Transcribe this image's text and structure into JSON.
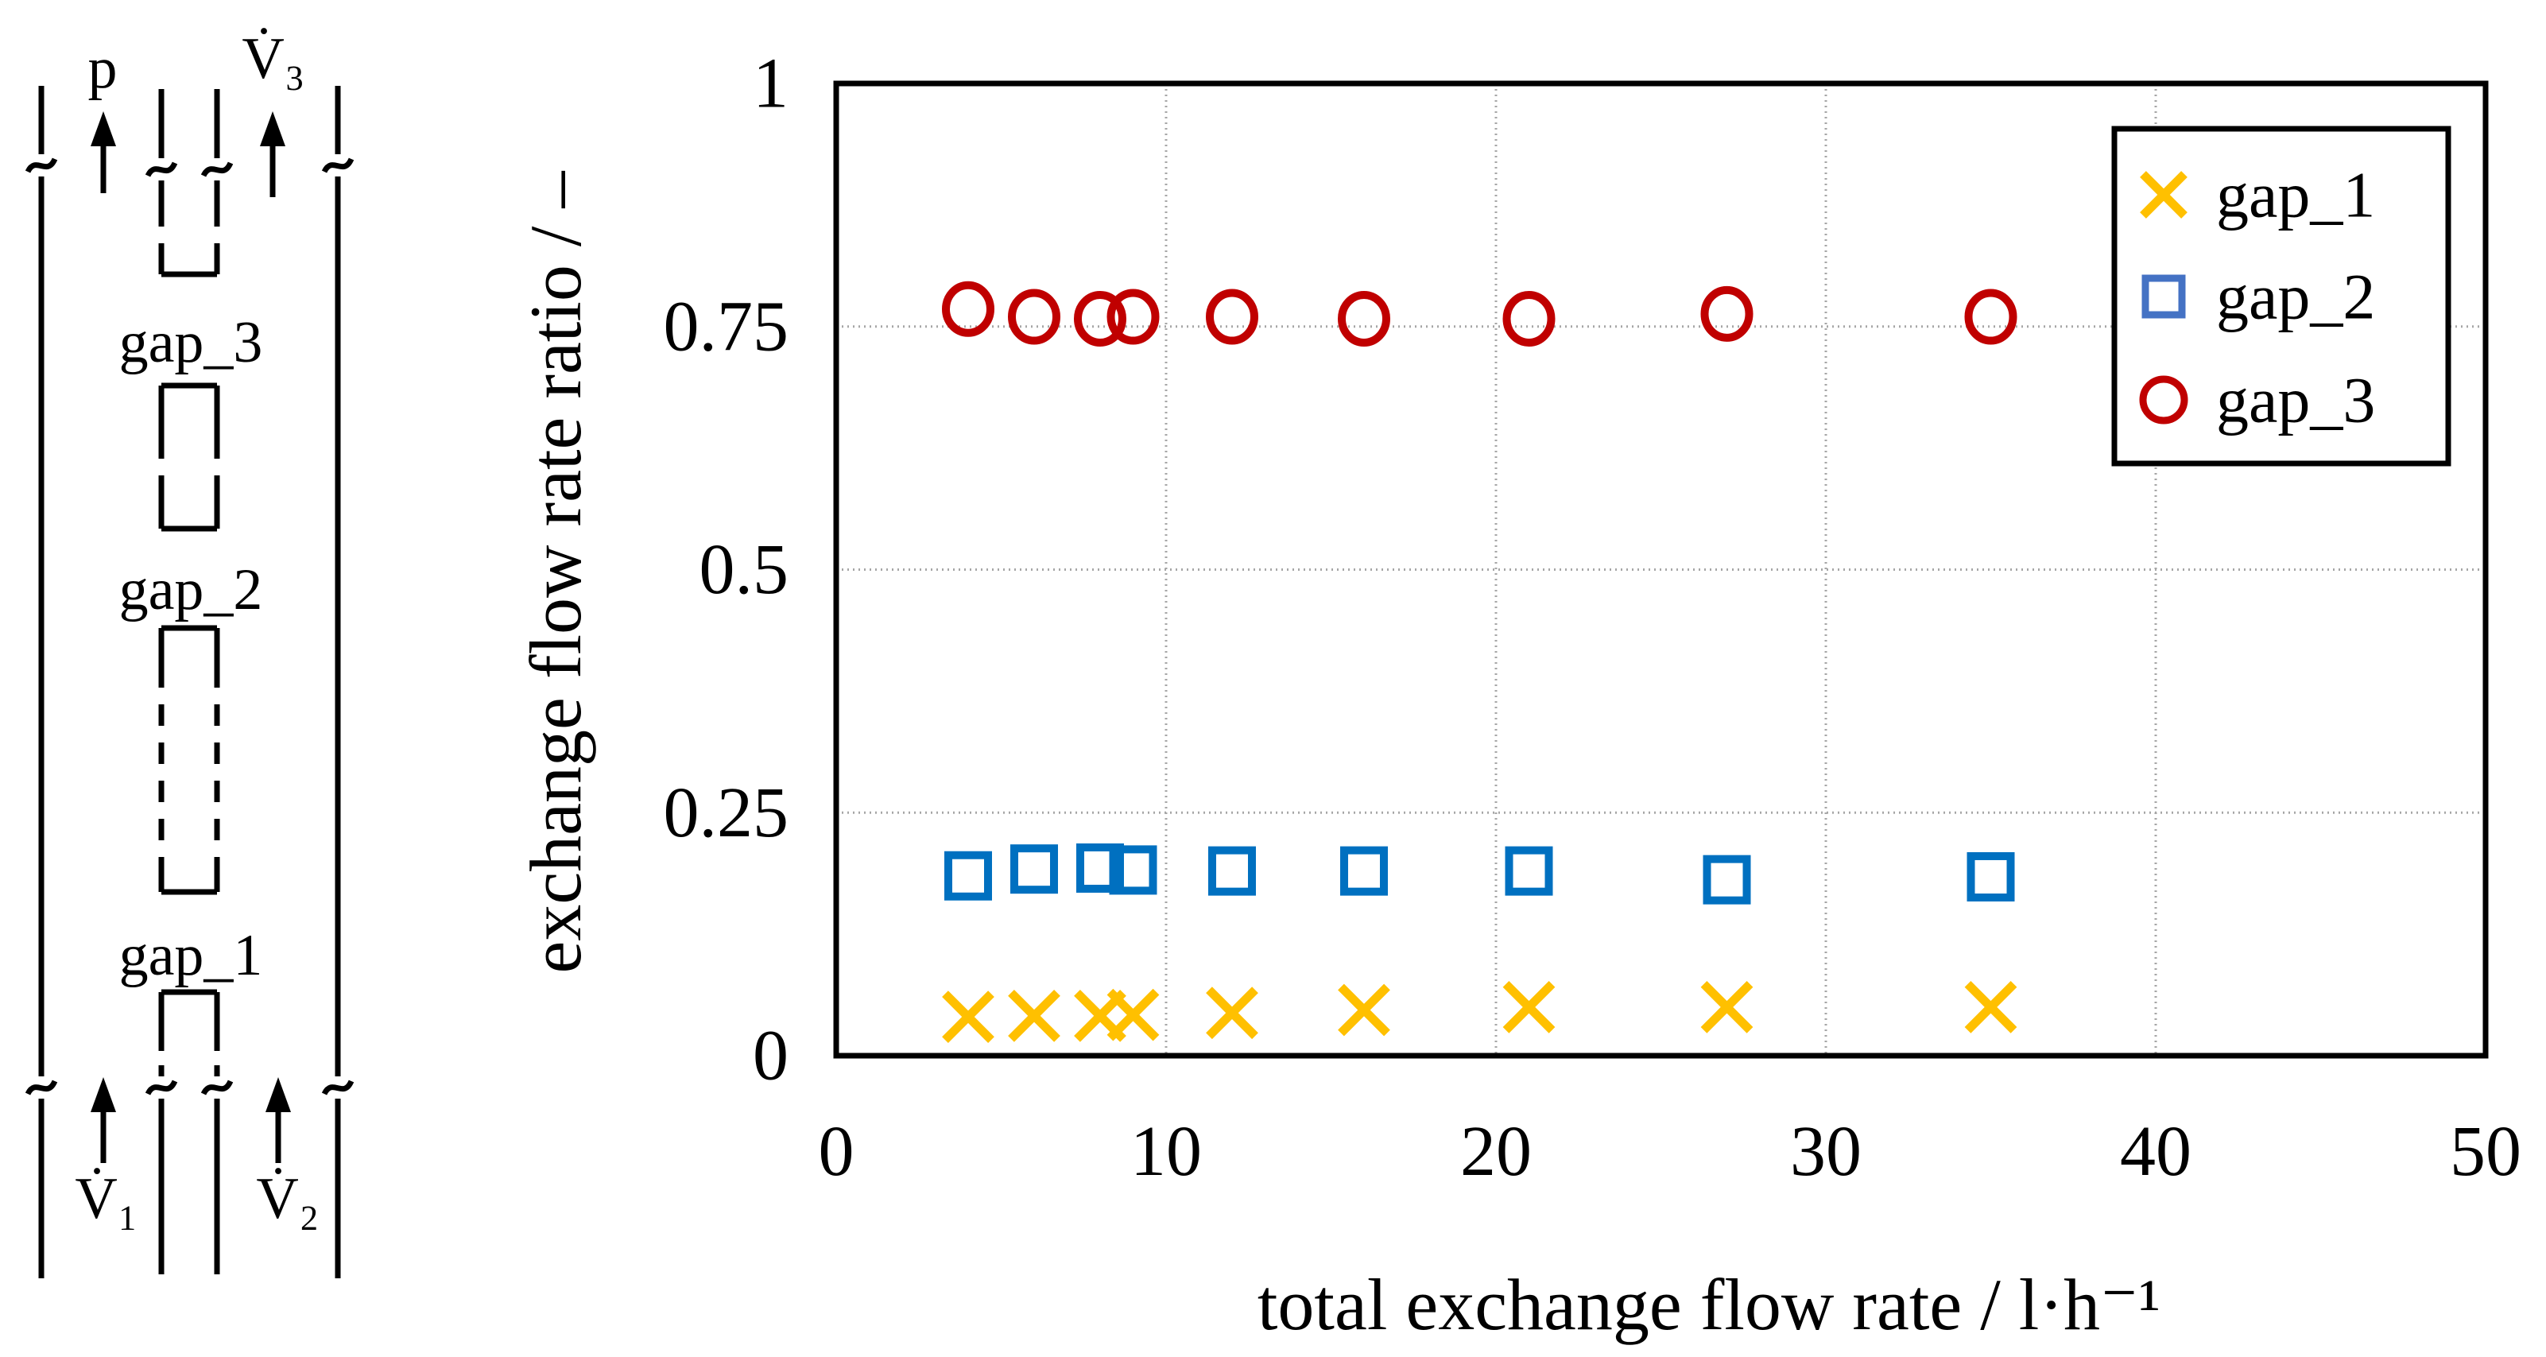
{
  "diagram": {
    "labels": {
      "p": "p",
      "v3": "V̇₃",
      "v1": "V̇₁",
      "v2": "V̇₂",
      "gap_3": "gap_3",
      "gap_2": "gap_2",
      "gap_1": "gap_1"
    }
  },
  "chart_data": {
    "type": "scatter",
    "title": "",
    "xlabel": "total exchange flow rate / l·h⁻¹",
    "ylabel": "exchange flow rate ratio / –",
    "xlim": [
      0,
      50
    ],
    "ylim": [
      0,
      1
    ],
    "x_ticks": [
      0,
      10,
      20,
      30,
      40,
      50
    ],
    "y_ticks": [
      "0",
      "0.25",
      "0.5",
      "0.75",
      "1"
    ],
    "grid": true,
    "legend_position": "top-right",
    "x": [
      4,
      6,
      8,
      9,
      12,
      16,
      21,
      27,
      35
    ],
    "series": [
      {
        "name": "gap_1",
        "marker": "x",
        "color": "#FFC000",
        "values": [
          0.04,
          0.041,
          0.041,
          0.042,
          0.044,
          0.047,
          0.05,
          0.05,
          0.05
        ]
      },
      {
        "name": "gap_2",
        "marker": "square",
        "color": "#0070C0",
        "legend_color": "#4472C4",
        "values": [
          0.185,
          0.192,
          0.193,
          0.191,
          0.19,
          0.19,
          0.19,
          0.181,
          0.184
        ]
      },
      {
        "name": "gap_3",
        "marker": "circle",
        "color": "#C00000",
        "values": [
          0.768,
          0.76,
          0.758,
          0.76,
          0.76,
          0.758,
          0.758,
          0.763,
          0.76
        ]
      }
    ],
    "colors": {
      "grid": "#a6a6a6",
      "frame": "#000000"
    }
  }
}
